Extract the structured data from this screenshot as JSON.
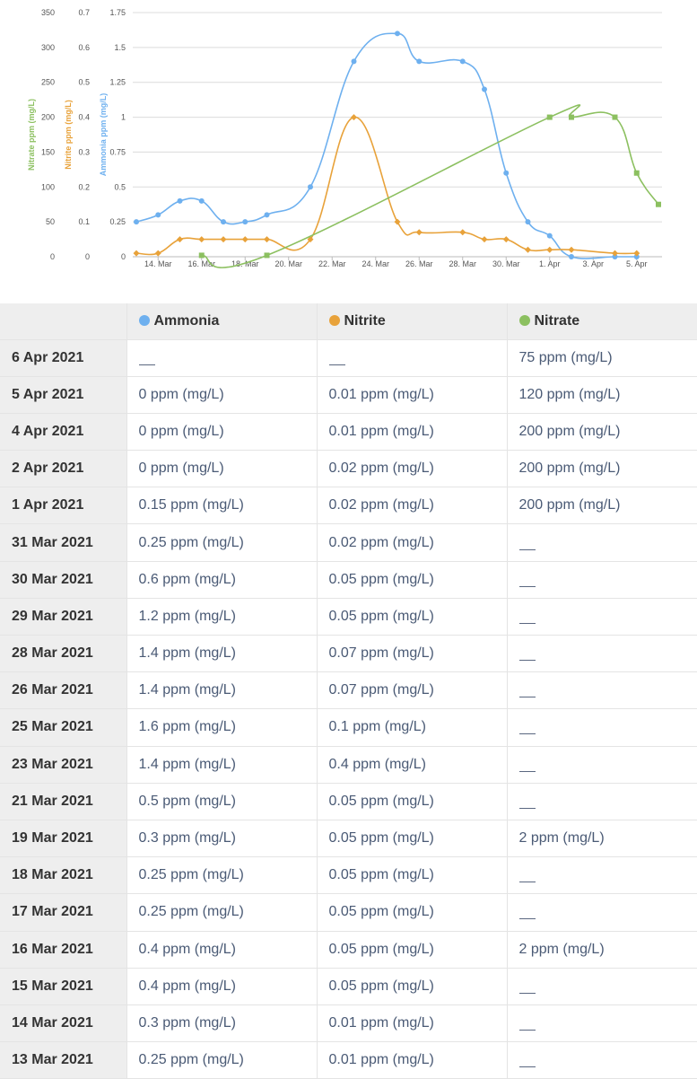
{
  "chart_data": {
    "type": "line",
    "x": [
      "13 Mar",
      "14 Mar",
      "15 Mar",
      "16 Mar",
      "17 Mar",
      "18 Mar",
      "19 Mar",
      "21 Mar",
      "23 Mar",
      "25 Mar",
      "26 Mar",
      "28 Mar",
      "29 Mar",
      "30 Mar",
      "31 Mar",
      "1 Apr",
      "2 Apr",
      "4 Apr",
      "5 Apr",
      "6 Apr"
    ],
    "x_tick_labels": [
      "14. Mar",
      "16. Mar",
      "18. Mar",
      "20. Mar",
      "22. Mar",
      "24. Mar",
      "26. Mar",
      "28. Mar",
      "30. Mar",
      "1. Apr",
      "3. Apr",
      "5. Apr"
    ],
    "y_axes": [
      {
        "title": "Ammonia ppm (mg/L)",
        "color": "#6eb0ef",
        "ticks": [
          "0",
          "0.25",
          "0.5",
          "0.75",
          "1",
          "1.25",
          "1.5",
          "1.75"
        ],
        "range": [
          0,
          1.75
        ]
      },
      {
        "title": "Nitrite ppm (mg/L)",
        "color": "#e8a23a",
        "ticks": [
          "0",
          "0.1",
          "0.2",
          "0.3",
          "0.4",
          "0.5",
          "0.6",
          "0.7"
        ],
        "range": [
          0,
          0.7
        ]
      },
      {
        "title": "Nitrate ppm (mg/L)",
        "color": "#8cc060",
        "ticks": [
          "0",
          "50",
          "100",
          "150",
          "200",
          "250",
          "300",
          "350"
        ],
        "range": [
          0,
          350
        ]
      }
    ],
    "series": [
      {
        "name": "Ammonia",
        "axis": 0,
        "color": "#6eb0ef",
        "marker": "circle",
        "values": [
          0.25,
          0.3,
          0.4,
          0.4,
          0.25,
          0.25,
          0.3,
          0.5,
          1.4,
          1.6,
          1.4,
          1.4,
          1.2,
          0.6,
          0.25,
          0.15,
          0,
          0,
          0,
          null
        ]
      },
      {
        "name": "Nitrite",
        "axis": 1,
        "color": "#e8a23a",
        "marker": "diamond",
        "values": [
          0.01,
          0.01,
          0.05,
          0.05,
          0.05,
          0.05,
          0.05,
          0.05,
          0.4,
          0.1,
          0.07,
          0.07,
          0.05,
          0.05,
          0.02,
          0.02,
          0.02,
          0.01,
          0.01,
          null
        ]
      },
      {
        "name": "Nitrate",
        "axis": 2,
        "color": "#8cc060",
        "marker": "square",
        "values": [
          null,
          null,
          null,
          2,
          null,
          null,
          2,
          null,
          null,
          null,
          null,
          null,
          null,
          null,
          null,
          200,
          200,
          200,
          120,
          75
        ]
      }
    ],
    "grid": true
  },
  "table": {
    "headers": {
      "date": "",
      "ammonia": "Ammonia",
      "nitrite": "Nitrite",
      "nitrate": "Nitrate"
    },
    "legend_colors": {
      "ammonia": "#6eb0ef",
      "nitrite": "#e8a23a",
      "nitrate": "#8cc060"
    },
    "rows": [
      {
        "date": "6 Apr 2021",
        "ammonia": "",
        "nitrite": "",
        "nitrate": "75 ppm (mg/L)"
      },
      {
        "date": "5 Apr 2021",
        "ammonia": "0 ppm (mg/L)",
        "nitrite": "0.01 ppm (mg/L)",
        "nitrate": "120 ppm (mg/L)"
      },
      {
        "date": "4 Apr 2021",
        "ammonia": "0 ppm (mg/L)",
        "nitrite": "0.01 ppm (mg/L)",
        "nitrate": "200 ppm (mg/L)"
      },
      {
        "date": "2 Apr 2021",
        "ammonia": "0 ppm (mg/L)",
        "nitrite": "0.02 ppm (mg/L)",
        "nitrate": "200 ppm (mg/L)"
      },
      {
        "date": "1 Apr 2021",
        "ammonia": "0.15 ppm (mg/L)",
        "nitrite": "0.02 ppm (mg/L)",
        "nitrate": "200 ppm (mg/L)"
      },
      {
        "date": "31 Mar 2021",
        "ammonia": "0.25 ppm (mg/L)",
        "nitrite": "0.02 ppm (mg/L)",
        "nitrate": ""
      },
      {
        "date": "30 Mar 2021",
        "ammonia": "0.6 ppm (mg/L)",
        "nitrite": "0.05 ppm (mg/L)",
        "nitrate": ""
      },
      {
        "date": "29 Mar 2021",
        "ammonia": "1.2 ppm (mg/L)",
        "nitrite": "0.05 ppm (mg/L)",
        "nitrate": ""
      },
      {
        "date": "28 Mar 2021",
        "ammonia": "1.4 ppm (mg/L)",
        "nitrite": "0.07 ppm (mg/L)",
        "nitrate": ""
      },
      {
        "date": "26 Mar 2021",
        "ammonia": "1.4 ppm (mg/L)",
        "nitrite": "0.07 ppm (mg/L)",
        "nitrate": ""
      },
      {
        "date": "25 Mar 2021",
        "ammonia": "1.6 ppm (mg/L)",
        "nitrite": "0.1 ppm (mg/L)",
        "nitrate": ""
      },
      {
        "date": "23 Mar 2021",
        "ammonia": "1.4 ppm (mg/L)",
        "nitrite": "0.4 ppm (mg/L)",
        "nitrate": ""
      },
      {
        "date": "21 Mar 2021",
        "ammonia": "0.5 ppm (mg/L)",
        "nitrite": "0.05 ppm (mg/L)",
        "nitrate": ""
      },
      {
        "date": "19 Mar 2021",
        "ammonia": "0.3 ppm (mg/L)",
        "nitrite": "0.05 ppm (mg/L)",
        "nitrate": "2 ppm (mg/L)"
      },
      {
        "date": "18 Mar 2021",
        "ammonia": "0.25 ppm (mg/L)",
        "nitrite": "0.05 ppm (mg/L)",
        "nitrate": ""
      },
      {
        "date": "17 Mar 2021",
        "ammonia": "0.25 ppm (mg/L)",
        "nitrite": "0.05 ppm (mg/L)",
        "nitrate": ""
      },
      {
        "date": "16 Mar 2021",
        "ammonia": "0.4 ppm (mg/L)",
        "nitrite": "0.05 ppm (mg/L)",
        "nitrate": "2 ppm (mg/L)"
      },
      {
        "date": "15 Mar 2021",
        "ammonia": "0.4 ppm (mg/L)",
        "nitrite": "0.05 ppm (mg/L)",
        "nitrate": ""
      },
      {
        "date": "14 Mar 2021",
        "ammonia": "0.3 ppm (mg/L)",
        "nitrite": "0.01 ppm (mg/L)",
        "nitrate": ""
      },
      {
        "date": "13 Mar 2021",
        "ammonia": "0.25 ppm (mg/L)",
        "nitrite": "0.01 ppm (mg/L)",
        "nitrate": ""
      }
    ]
  }
}
